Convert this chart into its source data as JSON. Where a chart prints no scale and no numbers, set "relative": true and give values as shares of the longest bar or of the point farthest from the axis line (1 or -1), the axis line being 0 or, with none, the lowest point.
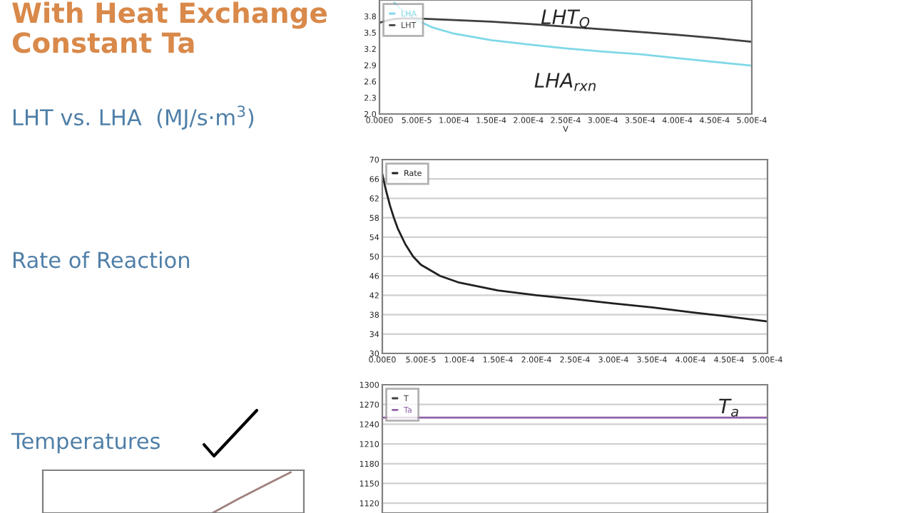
{
  "chart_data": [
    {
      "type": "line",
      "title": "LHT vs. LHA  (MJ/s·m$^{3}$)",
      "xlabel": "V",
      "annotations": [
        "With Heat Exchange",
        "Constant Ta",
        "Rate of Reaction",
        "Temperatures",
        "LHT$_{Q}$",
        "LHA$_{rxn}$"
      ],
      "xlim": [
        0,
        0.0005
      ],
      "xticks": [
        {
          "value": 0,
          "label": "0.00E0"
        },
        {
          "value": 5e-05,
          "label": "5.00E-5"
        },
        {
          "value": 0.0001,
          "label": "1.00E-4"
        },
        {
          "value": 0.00015,
          "label": "1.50E-4"
        },
        {
          "value": 0.0002,
          "label": "2.00E-4"
        },
        {
          "value": 0.00025,
          "label": "2.50E-4"
        },
        {
          "value": 0.0003,
          "label": "3.00E-4"
        },
        {
          "value": 0.00035,
          "label": "3.50E-4"
        },
        {
          "value": 0.0004,
          "label": "4.00E-4"
        },
        {
          "value": 0.00045,
          "label": "4.50E-4"
        },
        {
          "value": 0.0005,
          "label": "5.00E-4"
        }
      ],
      "ylim": [
        2.0,
        4.1
      ],
      "yticks": [
        {
          "value": 2.0,
          "label": "2.0"
        },
        2.3,
        2.6,
        2.9,
        3.2,
        3.5,
        3.8
      ],
      "grid": false,
      "legend": "top left",
      "series": [
        {
          "name": "LHA",
          "color": "#7fd8e6",
          "x": [
            2e-05,
            3e-05,
            5e-05,
            7e-05,
            0.0001,
            0.00015,
            0.0002,
            0.00025,
            0.0003,
            0.00035,
            0.0004,
            0.00045,
            0.0005
          ],
          "values": [
            4.05,
            3.92,
            3.73,
            3.6,
            3.48,
            3.36,
            3.28,
            3.21,
            3.15,
            3.1,
            3.03,
            2.96,
            2.89
          ]
        },
        {
          "name": "LHT",
          "color": "#404040",
          "x": [
            0,
            1e-05,
            2e-05,
            3e-05,
            5e-05,
            0.0001,
            0.00015,
            0.0002,
            0.00025,
            0.0003,
            0.00035,
            0.0004,
            0.00045,
            0.0005
          ],
          "values": [
            3.68,
            3.72,
            3.75,
            3.76,
            3.76,
            3.73,
            3.7,
            3.66,
            3.61,
            3.56,
            3.51,
            3.46,
            3.4,
            3.33
          ]
        }
      ]
    },
    {
      "type": "line",
      "xlim": [
        0,
        0.0005
      ],
      "xticks": [
        {
          "value": 0,
          "label": "0.00E0"
        },
        {
          "value": 5e-05,
          "label": "5.00E-5"
        },
        {
          "value": 0.0001,
          "label": "1.00E-4"
        },
        {
          "value": 0.00015,
          "label": "1.50E-4"
        },
        {
          "value": 0.0002,
          "label": "2.00E-4"
        },
        {
          "value": 0.00025,
          "label": "2.50E-4"
        },
        {
          "value": 0.0003,
          "label": "3.00E-4"
        },
        {
          "value": 0.00035,
          "label": "3.50E-4"
        },
        {
          "value": 0.0004,
          "label": "4.00E-4"
        },
        {
          "value": 0.00045,
          "label": "4.50E-4"
        },
        {
          "value": 0.0005,
          "label": "5.00E-4"
        }
      ],
      "ylim": [
        30,
        70
      ],
      "yticks": [
        30,
        34,
        38,
        42,
        46,
        50,
        54,
        58,
        62,
        66,
        70
      ],
      "grid": "y",
      "legend": "top left",
      "series": [
        {
          "name": "Rate",
          "color": "#202020",
          "x": [
            0,
            5e-06,
            1e-05,
            1.5e-05,
            2e-05,
            3e-05,
            4e-05,
            5e-05,
            7.5e-05,
            0.0001,
            0.00015,
            0.0002,
            0.00025,
            0.0003,
            0.00035,
            0.0004,
            0.00045,
            0.0005
          ],
          "values": [
            67,
            63.5,
            60.5,
            58,
            55.8,
            52.5,
            50,
            48.3,
            46,
            44.6,
            43,
            42,
            41.2,
            40.3,
            39.5,
            38.5,
            37.6,
            36.6
          ]
        }
      ]
    },
    {
      "type": "line",
      "tick_labels": "y",
      "annotations": [
        "T$_{a}$"
      ],
      "categories": [
        null,
        null
      ],
      "ylim": [
        1105,
        1300
      ],
      "yticks": [
        1120,
        1150,
        1180,
        1210,
        1240,
        1270,
        1300
      ],
      "grid": "y",
      "legend": "top left",
      "series": [
        {
          "name": "T",
          "color": "#404040",
          "values": [
            null,
            null
          ]
        }
      ],
      "ref_lines": [
        {
          "axis": "y",
          "value": 1250,
          "label": "Ta",
          "color": "#9060a8"
        }
      ]
    },
    {
      "type": "line",
      "relative": true,
      "grid": false,
      "categories": [
        null,
        null,
        null,
        null,
        null,
        null,
        null,
        null,
        null,
        null
      ],
      "series": [
        {
          "color": "#a08080",
          "values": [
            null,
            null,
            null,
            null,
            null,
            null,
            0.0,
            0.35,
            0.68,
            1.0
          ]
        }
      ]
    }
  ]
}
